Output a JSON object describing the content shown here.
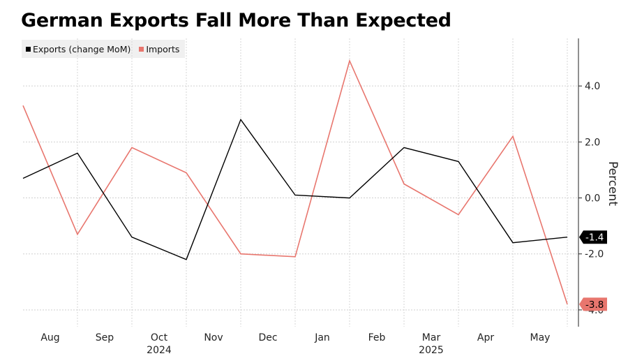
{
  "chart_data": {
    "type": "line",
    "title": "German Exports Fall More Than Expected",
    "xlabel": "",
    "ylabel": "Percent",
    "x": [
      "2024-07",
      "2024-08",
      "2024-09",
      "2024-10",
      "2024-11",
      "2024-12",
      "2025-01",
      "2025-02",
      "2025-03",
      "2025-04",
      "2025-05"
    ],
    "x_tick_labels": [
      "Aug",
      "Sep",
      "Oct",
      "Nov",
      "Dec",
      "Jan",
      "Feb",
      "Mar",
      "Apr",
      "May"
    ],
    "x_year_labels": [
      "2024",
      "2025"
    ],
    "y_ticks": [
      "4.0",
      "2.0",
      "0.0",
      "-2.0",
      "-4.0"
    ],
    "ylim": [
      -4.6,
      5.7
    ],
    "y_axis_position": "right",
    "grid": true,
    "legend_position": "top-left",
    "series": [
      {
        "name": "Exports (change MoM)",
        "color": "#000000",
        "values": [
          0.7,
          1.6,
          -1.4,
          -2.2,
          2.8,
          0.1,
          0.0,
          1.8,
          1.3,
          -1.6,
          -1.4
        ],
        "end_label": "-1.4"
      },
      {
        "name": "Imports",
        "color": "#e8766e",
        "values": [
          3.3,
          -1.3,
          1.8,
          0.9,
          -2.0,
          -2.1,
          4.9,
          0.5,
          -0.6,
          2.2,
          -3.8
        ],
        "end_label": "-3.8"
      }
    ]
  }
}
